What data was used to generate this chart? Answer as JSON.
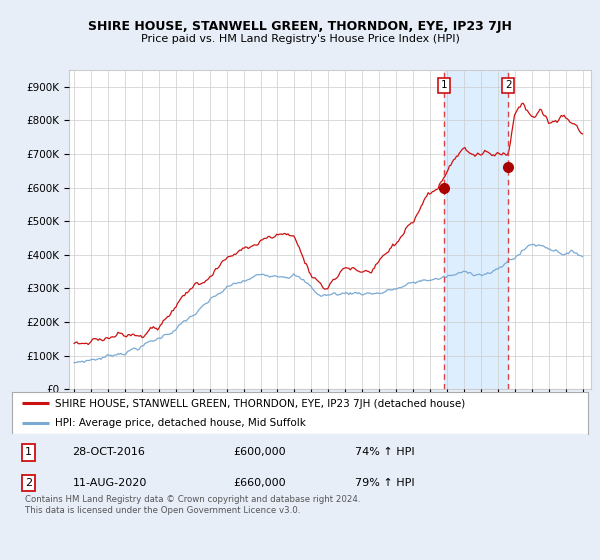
{
  "title": "SHIRE HOUSE, STANWELL GREEN, THORNDON, EYE, IP23 7JH",
  "subtitle": "Price paid vs. HM Land Registry's House Price Index (HPI)",
  "ylim": [
    0,
    950000
  ],
  "yticks": [
    0,
    100000,
    200000,
    300000,
    400000,
    500000,
    600000,
    700000,
    800000,
    900000
  ],
  "ytick_labels": [
    "£0",
    "£100K",
    "£200K",
    "£300K",
    "£400K",
    "£500K",
    "£600K",
    "£700K",
    "£800K",
    "£900K"
  ],
  "hpi_color": "#7aaad4",
  "house_color": "#cc1111",
  "marker_color": "#aa0000",
  "vline_color": "#dd4444",
  "shade_color": "#ddeeff",
  "legend_house": "SHIRE HOUSE, STANWELL GREEN, THORNDON, EYE, IP23 7JH (detached house)",
  "legend_hpi": "HPI: Average price, detached house, Mid Suffolk",
  "sale1_date": "28-OCT-2016",
  "sale1_price": "£600,000",
  "sale1_hpi": "74% ↑ HPI",
  "sale2_date": "11-AUG-2020",
  "sale2_price": "£660,000",
  "sale2_hpi": "79% ↑ HPI",
  "footer": "Contains HM Land Registry data © Crown copyright and database right 2024.\nThis data is licensed under the Open Government Licence v3.0.",
  "background_color": "#e8eef8",
  "plot_bg_color": "#ffffff",
  "grid_color": "#cccccc",
  "sale1_year": 2016.83,
  "sale2_year": 2020.62,
  "sale1_value": 600000,
  "sale2_value": 660000,
  "xmin": 1994.7,
  "xmax": 2025.5
}
